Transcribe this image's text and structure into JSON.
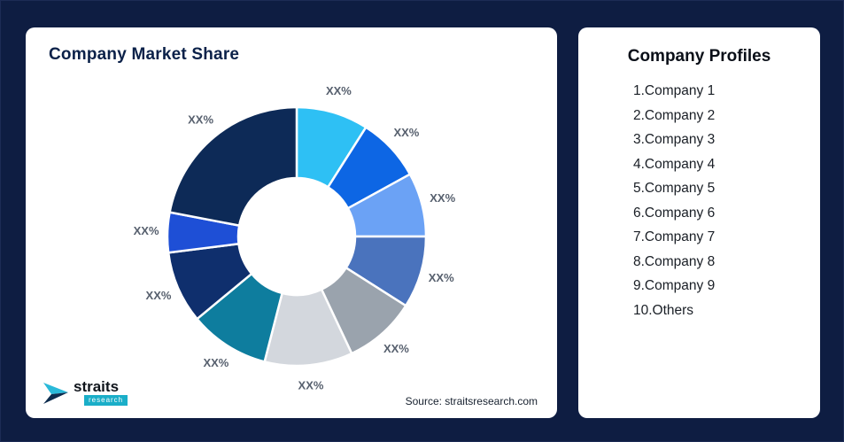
{
  "page": {
    "background_color": "#0e1d42",
    "card_color": "#ffffff"
  },
  "market_share_card": {
    "source": "Source: straitsresearch.com"
  },
  "logo": {
    "title": "straits",
    "subtitle": "research",
    "mark_colors": {
      "top": "#2ab9d9",
      "bottom": "#0d2c4e"
    }
  },
  "profiles_card": {
    "title": "Company Profiles",
    "items": [
      "1.Company 1",
      "2.Company 2",
      "3.Company 3",
      "4.Company 4",
      "5.Company 5",
      "6.Company 6",
      "7.Company 7",
      "8.Company 8",
      "9.Company 9",
      "10.Others"
    ]
  },
  "chart_data": {
    "type": "pie",
    "donut": true,
    "title": "Company Market Share",
    "categories": [
      "Company 1",
      "Company 2",
      "Company 3",
      "Company 4",
      "Company 5",
      "Company 6",
      "Company 7",
      "Company 8",
      "Company 9",
      "Others"
    ],
    "values": [
      9,
      8,
      8,
      9,
      9,
      11,
      10,
      9,
      5,
      22
    ],
    "values_note": "Angular shares estimated from pixels; actual values masked as XX% in source image",
    "display_labels": [
      "XX%",
      "XX%",
      "XX%",
      "XX%",
      "XX%",
      "XX%",
      "XX%",
      "XX%",
      "XX%",
      "XX%"
    ],
    "colors": [
      "#2ec0f4",
      "#0d66e4",
      "#6ba2f5",
      "#4a73bd",
      "#9aa3ad",
      "#d3d7dd",
      "#0e7d9e",
      "#0f2f6d",
      "#1e4fd6",
      "#0d2a57"
    ],
    "start_angle_deg": 0,
    "inner_radius_ratio": 0.45,
    "legend": false,
    "label_color": "#57606e"
  }
}
